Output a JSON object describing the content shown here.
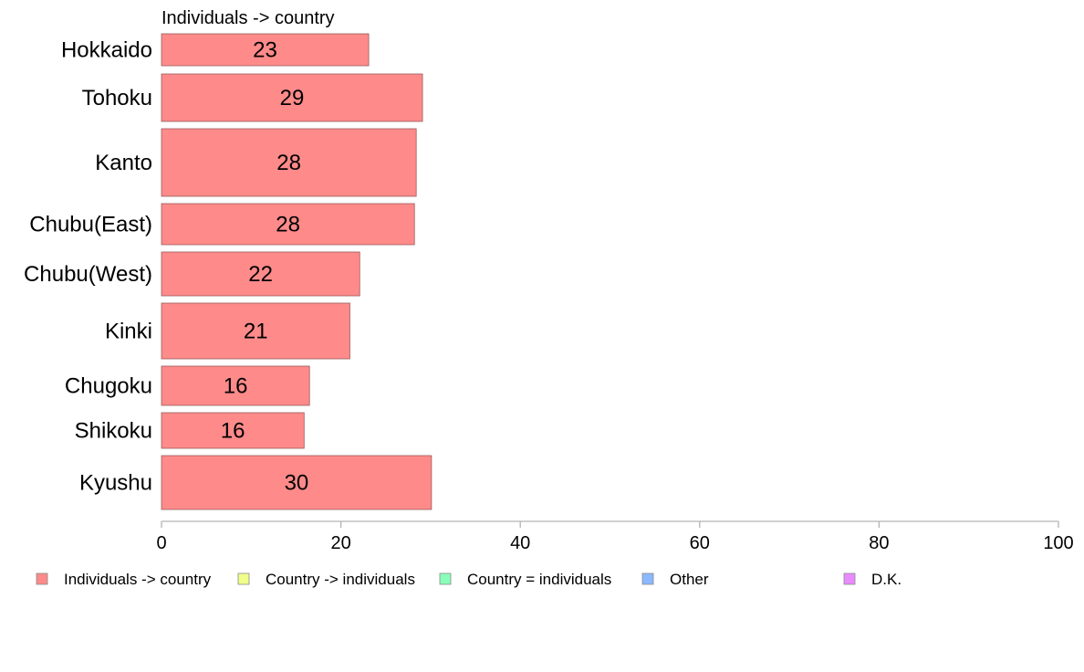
{
  "chart_data": {
    "type": "bar",
    "orientation": "horizontal",
    "panel_label": "Individuals -> country",
    "categories": [
      "Hokkaido",
      "Tohoku",
      "Kanto",
      "Chubu(East)",
      "Chubu(West)",
      "Kinki",
      "Chugoku",
      "Shikoku",
      "Kyushu"
    ],
    "series": [
      {
        "name": "Individuals -> country",
        "color": "#ff8a8a",
        "values": [
          23,
          29,
          28,
          28,
          22,
          21,
          16,
          16,
          30
        ]
      }
    ],
    "bar_value_precise": [
      23.1,
      29.1,
      28.4,
      28.2,
      22.1,
      21.0,
      16.5,
      15.9,
      30.1
    ],
    "data_labels": [
      "23",
      "29",
      "28",
      "28",
      "22",
      "21",
      "16",
      "16",
      "30"
    ],
    "xlim": [
      0,
      100
    ],
    "x_ticks": [
      0,
      20,
      40,
      60,
      80,
      100
    ],
    "x_tick_labels": [
      "0",
      "20",
      "40",
      "60",
      "80",
      "100"
    ],
    "xlabel": "",
    "ylabel": "",
    "grid": false,
    "legend_position": "bottom",
    "legend": [
      {
        "label": "Individuals -> country",
        "color": "#ff8a8a"
      },
      {
        "label": "Country -> individuals",
        "color": "#f0ff8a"
      },
      {
        "label": "Country = individuals",
        "color": "#8affb9"
      },
      {
        "label": "Other",
        "color": "#8ab9ff"
      },
      {
        "label": "D.K.",
        "color": "#ea8aff"
      }
    ]
  }
}
